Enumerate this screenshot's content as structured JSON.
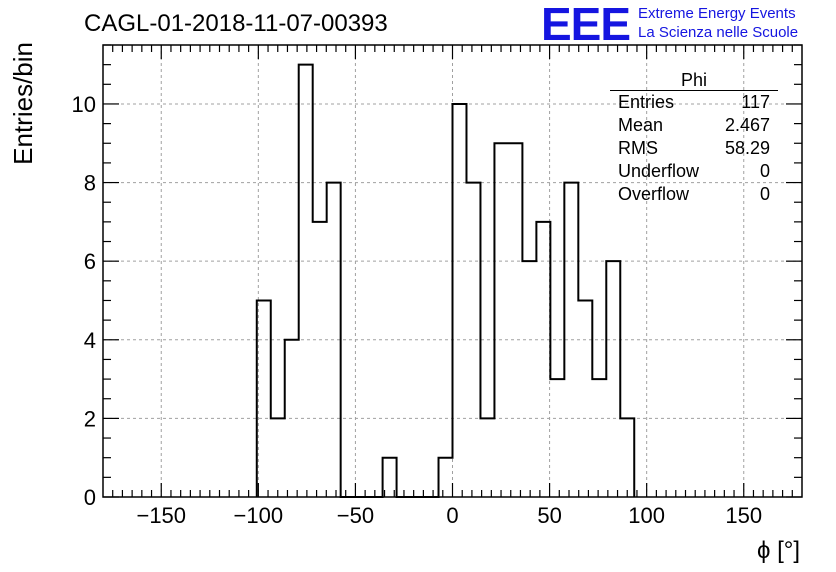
{
  "header": {
    "title": "CAGL-01-2018-11-07-00393",
    "logo": "EEE",
    "logo_line1": "Extreme Energy Events",
    "logo_line2": "La Scienza nelle Scuole"
  },
  "stats": {
    "name": "Phi",
    "rows": [
      {
        "label": "Entries",
        "value": "117"
      },
      {
        "label": "Mean",
        "value": "2.467"
      },
      {
        "label": "RMS",
        "value": "58.29"
      },
      {
        "label": "Underflow",
        "value": "0"
      },
      {
        "label": "Overflow",
        "value": "0"
      }
    ]
  },
  "chart_data": {
    "type": "bar",
    "histogram": true,
    "xlabel": "ϕ [°]",
    "ylabel": "Entries/bin",
    "xlim": [
      -180,
      180
    ],
    "ylim": [
      0,
      11.5
    ],
    "bin_width": 7.2,
    "x_ticks": [
      -150,
      -100,
      -50,
      0,
      50,
      100,
      150
    ],
    "y_ticks": [
      0,
      2,
      4,
      6,
      8,
      10
    ],
    "grid": true,
    "bins": [
      {
        "x0": -100.8,
        "count": 5
      },
      {
        "x0": -93.6,
        "count": 2
      },
      {
        "x0": -86.4,
        "count": 4
      },
      {
        "x0": -79.2,
        "count": 11
      },
      {
        "x0": -72.0,
        "count": 7
      },
      {
        "x0": -64.8,
        "count": 8
      },
      {
        "x0": -57.6,
        "count": 0
      },
      {
        "x0": -50.4,
        "count": 0
      },
      {
        "x0": -43.2,
        "count": 0
      },
      {
        "x0": -36.0,
        "count": 1
      },
      {
        "x0": -28.8,
        "count": 0
      },
      {
        "x0": -21.6,
        "count": 0
      },
      {
        "x0": -14.4,
        "count": 0
      },
      {
        "x0": -7.2,
        "count": 1
      },
      {
        "x0": 0.0,
        "count": 10
      },
      {
        "x0": 7.2,
        "count": 8
      },
      {
        "x0": 14.4,
        "count": 2
      },
      {
        "x0": 21.6,
        "count": 9
      },
      {
        "x0": 28.8,
        "count": 9
      },
      {
        "x0": 36.0,
        "count": 6
      },
      {
        "x0": 43.2,
        "count": 7
      },
      {
        "x0": 50.4,
        "count": 3
      },
      {
        "x0": 57.6,
        "count": 8
      },
      {
        "x0": 64.8,
        "count": 5
      },
      {
        "x0": 72.0,
        "count": 3
      },
      {
        "x0": 79.2,
        "count": 6
      },
      {
        "x0": 86.4,
        "count": 2
      }
    ]
  }
}
